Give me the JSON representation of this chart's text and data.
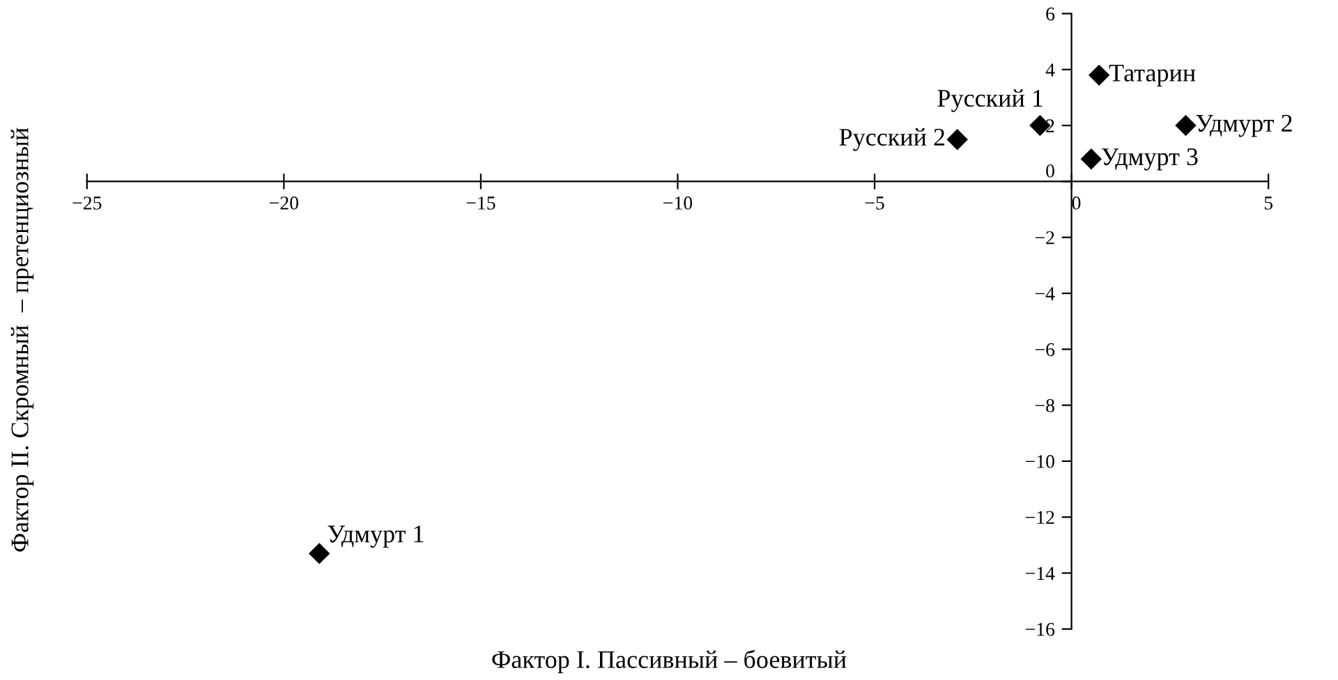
{
  "chart_data": {
    "type": "scatter",
    "xlabel": "Фактор I. Пассивный – боевитый",
    "ylabel": "Фактор II. Скромный  – претенциозный",
    "marker": "diamond",
    "grid": false,
    "legend": false,
    "series": [
      {
        "name": "Татарин",
        "color": "#000000",
        "x": [
          0.7
        ],
        "values": [
          3.8
        ]
      },
      {
        "name": "Русский 1",
        "color": "#000000",
        "x": [
          -0.8
        ],
        "values": [
          2.0
        ]
      },
      {
        "name": "Русский 2",
        "color": "#000000",
        "x": [
          -2.9
        ],
        "values": [
          1.5
        ]
      },
      {
        "name": "Удмурт 2",
        "color": "#000000",
        "x": [
          2.9
        ],
        "values": [
          2.0
        ]
      },
      {
        "name": "Удмурт 3",
        "color": "#000000",
        "x": [
          0.5
        ],
        "values": [
          0.8
        ]
      },
      {
        "name": "Удмурт 1",
        "color": "#000000",
        "x": [
          -19.1
        ],
        "values": [
          -13.3
        ]
      }
    ],
    "xlim": [
      -25,
      5
    ],
    "ylim": [
      -16,
      6
    ],
    "xticks": [
      {
        "value": -25,
        "label": "−25"
      },
      {
        "value": -20,
        "label": "−20"
      },
      {
        "value": -15,
        "label": "−15"
      },
      {
        "value": -10,
        "label": "−10"
      },
      {
        "value": -5,
        "label": "−5"
      },
      0,
      5
    ],
    "yticks": [
      {
        "value": -16,
        "label": "−16"
      },
      {
        "value": -14,
        "label": "−14"
      },
      {
        "value": -12,
        "label": "−12"
      },
      {
        "value": -10,
        "label": "−10"
      },
      {
        "value": -8,
        "label": "−8"
      },
      {
        "value": -6,
        "label": "−6"
      },
      {
        "value": -4,
        "label": "−4"
      },
      {
        "value": -2,
        "label": "−2"
      },
      0,
      2,
      4,
      6
    ]
  }
}
